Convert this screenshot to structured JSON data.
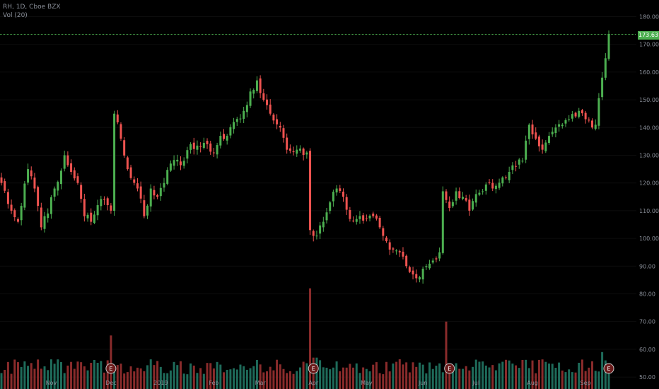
{
  "legend": {
    "symbol_line": "RH, 1D, Cboe BZX",
    "volume_line": "Vol (20)"
  },
  "last_price_label": "173.63",
  "colors": {
    "background": "#000000",
    "up": "#4caf50",
    "down": "#ef5350",
    "up_volume": "#1e6b5a",
    "down_volume": "#8a2b2b",
    "price_line": "#4caf50",
    "axis_text": "#8a8f99",
    "earnings_badge": "#6b1b1b"
  },
  "chart_data": {
    "type": "candlestick",
    "title": "",
    "price_axis": {
      "ticks": [
        50,
        60,
        70,
        80,
        90,
        100,
        110,
        120,
        130,
        140,
        150,
        160,
        170,
        180
      ],
      "tick_labels": [
        "50.00",
        "60.00",
        "70.00",
        "80.00",
        "90.00",
        "100.00",
        "110.00",
        "120.00",
        "130.00",
        "140.00",
        "150.00",
        "160.00",
        "170.00",
        "180.00"
      ],
      "ylim": [
        49,
        186
      ]
    },
    "time_axis": {
      "labels": [
        "Nov",
        "Dec",
        "2019",
        "Feb",
        "Mar",
        "Apr",
        "May",
        "Jun",
        "Jul",
        "Aug",
        "Sep"
      ],
      "label_bars": [
        15,
        33,
        48,
        64,
        78,
        94,
        110,
        127,
        143,
        160,
        176
      ]
    },
    "last_price": 173.63,
    "earnings_markers": {
      "label": "E",
      "bars": [
        33,
        94,
        135,
        183
      ]
    },
    "close_anchors": [
      [
        0,
        120
      ],
      [
        3,
        110
      ],
      [
        5,
        106
      ],
      [
        8,
        125
      ],
      [
        10,
        118
      ],
      [
        12,
        104
      ],
      [
        14,
        109
      ],
      [
        16,
        118
      ],
      [
        19,
        130
      ],
      [
        21,
        124
      ],
      [
        23,
        120
      ],
      [
        25,
        108
      ],
      [
        27,
        106
      ],
      [
        29,
        112
      ],
      [
        31,
        114
      ],
      [
        32,
        112
      ],
      [
        33,
        110
      ],
      [
        34,
        145
      ],
      [
        36,
        136
      ],
      [
        38,
        125
      ],
      [
        41,
        118
      ],
      [
        43,
        108
      ],
      [
        45,
        118
      ],
      [
        47,
        115
      ],
      [
        49,
        120
      ],
      [
        51,
        127
      ],
      [
        55,
        128
      ],
      [
        57,
        134
      ],
      [
        60,
        133
      ],
      [
        62,
        134
      ],
      [
        64,
        131
      ],
      [
        66,
        137
      ],
      [
        68,
        137
      ],
      [
        70,
        142
      ],
      [
        73,
        146
      ],
      [
        75,
        153
      ],
      [
        77,
        157
      ],
      [
        79,
        150
      ],
      [
        81,
        145
      ],
      [
        84,
        140
      ],
      [
        86,
        132
      ],
      [
        89,
        132
      ],
      [
        92,
        131
      ],
      [
        93,
        103
      ],
      [
        95,
        101
      ],
      [
        97,
        106
      ],
      [
        99,
        113
      ],
      [
        101,
        118
      ],
      [
        103,
        115
      ],
      [
        105,
        107
      ],
      [
        107,
        107
      ],
      [
        110,
        107
      ],
      [
        112,
        108
      ],
      [
        114,
        104
      ],
      [
        116,
        99
      ],
      [
        118,
        96
      ],
      [
        120,
        95
      ],
      [
        122,
        90
      ],
      [
        124,
        87
      ],
      [
        126,
        86
      ],
      [
        128,
        90
      ],
      [
        130,
        92
      ],
      [
        132,
        95
      ],
      [
        133,
        117
      ],
      [
        135,
        111
      ],
      [
        137,
        117
      ],
      [
        139,
        115
      ],
      [
        141,
        110
      ],
      [
        143,
        116
      ],
      [
        145,
        117
      ],
      [
        147,
        120
      ],
      [
        149,
        119
      ],
      [
        151,
        122
      ],
      [
        153,
        124
      ],
      [
        155,
        126
      ],
      [
        157,
        128
      ],
      [
        159,
        141
      ],
      [
        161,
        136
      ],
      [
        163,
        132
      ],
      [
        165,
        137
      ],
      [
        167,
        140
      ],
      [
        169,
        141
      ],
      [
        171,
        143
      ],
      [
        173,
        144
      ],
      [
        174,
        146
      ],
      [
        176,
        143
      ],
      [
        178,
        140
      ],
      [
        179,
        141
      ],
      [
        181,
        158
      ],
      [
        182,
        165
      ],
      [
        183,
        173.63
      ]
    ],
    "volume_axis": {
      "ticks": [
        50,
        60,
        70,
        80,
        90
      ],
      "note": "volume bars occupy the bottom of the pane"
    },
    "volume_spikes": [
      [
        33,
        65
      ],
      [
        34,
        53
      ],
      [
        93,
        82
      ],
      [
        94,
        57
      ],
      [
        95,
        57
      ],
      [
        134,
        70
      ],
      [
        181,
        59
      ],
      [
        182,
        56
      ]
    ]
  }
}
